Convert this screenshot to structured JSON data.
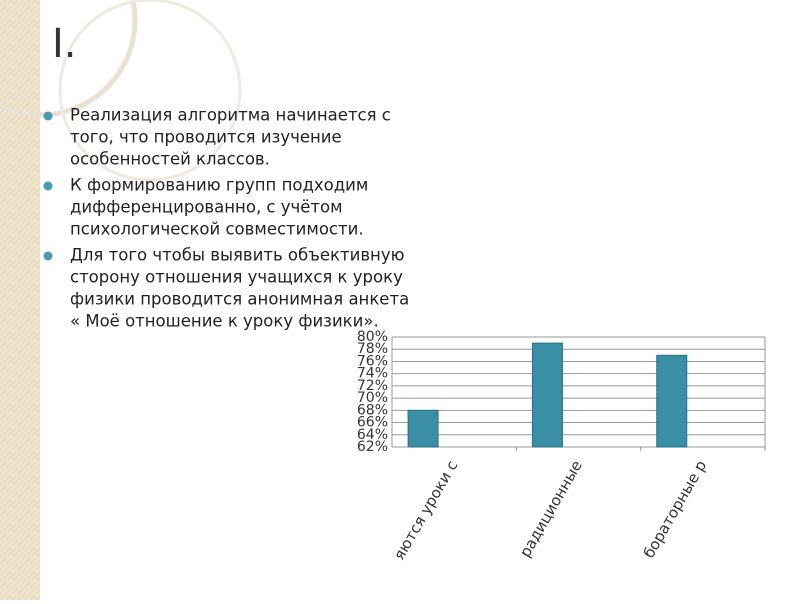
{
  "slide": {
    "title": "I.",
    "bullets": [
      {
        "lines": [
          "Реализация алгоритма начинается  с",
          "того, что проводится изучение",
          "особенностей  классов."
        ]
      },
      {
        "lines": [
          "К формированию групп подходим",
          "дифференцированно, с учётом",
          "психологической совместимости."
        ]
      },
      {
        "lines": [
          "  Для того чтобы выявить объективную",
          "сторону отношения учащихся к уроку",
          "физики проводится анонимная анкета",
          "« Моё отношение к уроку физики»."
        ]
      }
    ]
  },
  "chart_data": {
    "type": "bar",
    "categories": [
      "яются уроки с",
      "радиционные",
      "бораторные р"
    ],
    "values": [
      68,
      79,
      77
    ],
    "color": "#3a8fa6",
    "ylim": [
      62,
      80
    ],
    "yticks": [
      {
        "value": 62,
        "label": "62%"
      },
      {
        "value": 64,
        "label": "64%"
      },
      {
        "value": 66,
        "label": "66%"
      },
      {
        "value": 68,
        "label": "68%"
      },
      {
        "value": 70,
        "label": "70%"
      },
      {
        "value": 72,
        "label": "72%"
      },
      {
        "value": 74,
        "label": "74%"
      },
      {
        "value": 76,
        "label": "76%"
      },
      {
        "value": 78,
        "label": "78%"
      },
      {
        "value": 80,
        "label": "80%"
      }
    ],
    "grid": true
  }
}
